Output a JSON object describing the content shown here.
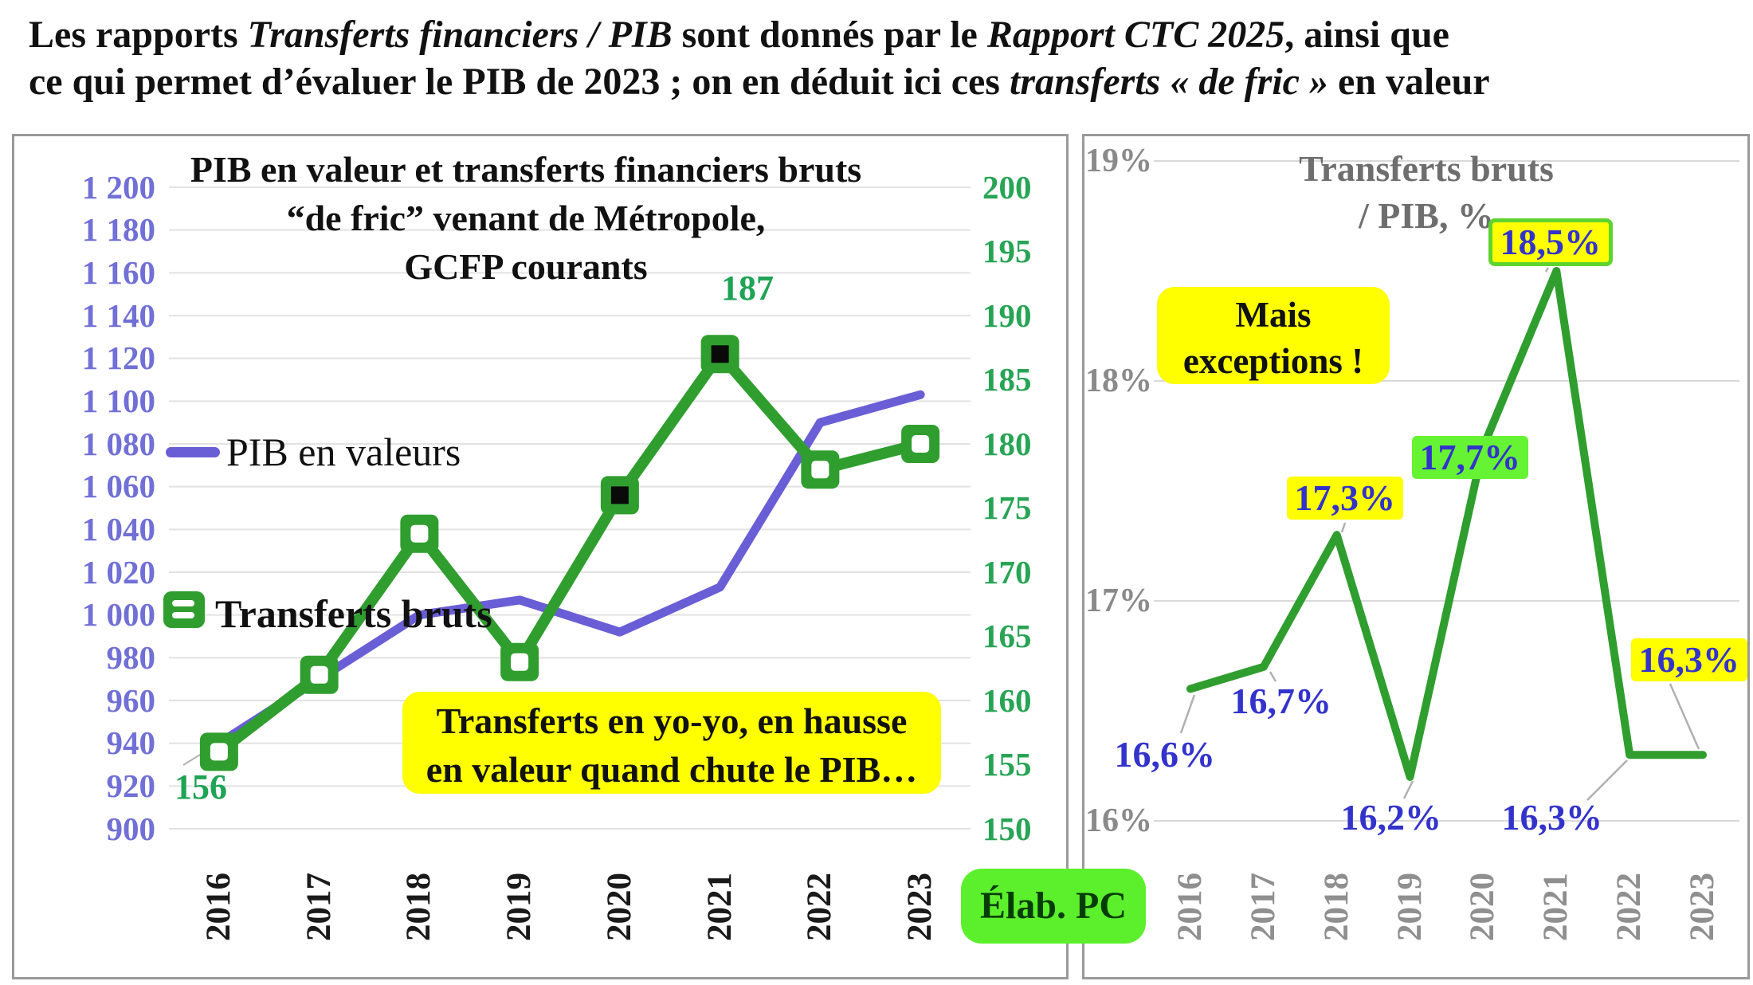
{
  "header": {
    "lines": [
      {
        "segments": [
          {
            "t": "Les rapports ",
            "i": false
          },
          {
            "t": "Transferts financiers / PIB",
            "i": true
          },
          {
            "t": "  sont donnés par le  ",
            "i": false
          },
          {
            "t": "Rapport CTC 2025",
            "i": true
          },
          {
            "t": ", ainsi que",
            "i": false
          }
        ]
      },
      {
        "segments": [
          {
            "t": "ce qui permet d’évaluer le PIB de 2023 ; on en déduit ici ces ",
            "i": false
          },
          {
            "t": "transferts « de fric »",
            "i": true
          },
          {
            "t": " en valeur",
            "i": false
          }
        ]
      }
    ]
  },
  "badge": {
    "label": "Élab. PC"
  },
  "colors": {
    "pib_line": "#6a5ed6",
    "transfers_line": "#2f9e2f",
    "left_axis_text": "#7170d6",
    "right_axis_text": "#28a455",
    "pct_label_text": "#3333cc",
    "note_bg": "#ffff00",
    "green_label_bg": "#66f333",
    "badge_bg": "#5cf02c",
    "gridline": "#e2e2e2",
    "leader": "#b0b0b0"
  },
  "chart_data": [
    {
      "type": "line",
      "title_lines": [
        "PIB en valeur et transferts financiers bruts",
        "“de fric” venant de Métropole,",
        "GCFP courants"
      ],
      "categories": [
        "2016",
        "2017",
        "2018",
        "2019",
        "2020",
        "2021",
        "2022",
        "2023"
      ],
      "series": [
        {
          "name": "PIB en valeurs",
          "axis": "left",
          "values": [
            940,
            970,
            1000,
            1007,
            992,
            1013,
            1090,
            1103
          ]
        },
        {
          "name": "Transferts bruts",
          "axis": "right",
          "values": [
            156,
            162,
            173,
            163,
            176,
            187,
            178,
            180
          ],
          "marker_inner": [
            "light",
            "light",
            "light",
            "light",
            "dark",
            "dark",
            "light",
            "light"
          ]
        }
      ],
      "axis_left": {
        "min": 900,
        "max": 1200,
        "step": 20,
        "tick_labels": [
          "1 200",
          "1 180",
          "1 160",
          "1 140",
          "1 120",
          "1 100",
          "1 080",
          "1 060",
          "1 040",
          "1 020",
          "1 000",
          "980",
          "960",
          "940",
          "920",
          "900"
        ]
      },
      "axis_right": {
        "min": 150,
        "max": 200,
        "step": 5,
        "tick_labels": [
          "200",
          "195",
          "190",
          "185",
          "180",
          "175",
          "170",
          "165",
          "160",
          "155",
          "150"
        ]
      },
      "point_labels": [
        {
          "series": 1,
          "index": 0,
          "text": "156"
        },
        {
          "series": 1,
          "index": 5,
          "text": "187"
        }
      ],
      "annotation_lines": [
        "Transferts en yo-yo, en hausse",
        "en valeur quand chute le PIB…"
      ],
      "legend": [
        "PIB en valeurs",
        "Transferts bruts"
      ],
      "grid": true
    },
    {
      "type": "line",
      "title_lines": [
        "Transferts bruts",
        "/ PIB, %"
      ],
      "categories": [
        "2016",
        "2017",
        "2018",
        "2019",
        "2020",
        "2021",
        "2022",
        "2023"
      ],
      "series": [
        {
          "name": "Transferts bruts / PIB, %",
          "axis": "left",
          "values": [
            16.6,
            16.7,
            17.3,
            16.2,
            17.7,
            18.5,
            16.3,
            16.3
          ]
        }
      ],
      "axis_left": {
        "min": 16,
        "max": 19,
        "step": 1,
        "tick_labels": [
          "19%",
          "18%",
          "17%",
          "16%"
        ]
      },
      "point_labels": [
        {
          "index": 0,
          "text": "16,6%",
          "style": "plain"
        },
        {
          "index": 1,
          "text": "16,7%",
          "style": "plain"
        },
        {
          "index": 2,
          "text": "17,3%",
          "style": "yellow-box"
        },
        {
          "index": 3,
          "text": "16,2%",
          "style": "plain"
        },
        {
          "index": 4,
          "text": "17,7%",
          "style": "green-box"
        },
        {
          "index": 5,
          "text": "18,5%",
          "style": "yellow-box-green-border"
        },
        {
          "index": 6,
          "text": "16,3%",
          "style": "plain"
        },
        {
          "index": 7,
          "text": "16,3%",
          "style": "yellow-box"
        }
      ],
      "annotation_lines": [
        "Mais",
        "exceptions !"
      ],
      "grid": true
    }
  ]
}
